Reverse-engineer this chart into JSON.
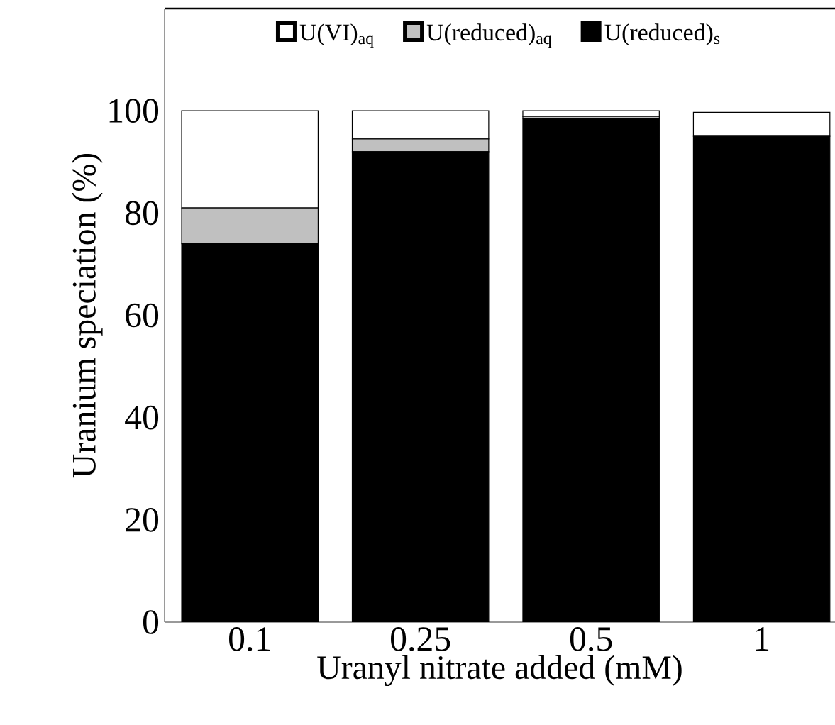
{
  "chart_data": {
    "type": "bar",
    "stacked": true,
    "xlabel": "Uranyl nitrate added (mM)",
    "ylabel": "Uranium speciation (%)",
    "categories": [
      "0.1",
      "0.25",
      "0.5",
      "1"
    ],
    "series": [
      {
        "name": "U(reduced)$_{s}$",
        "color": "#000000",
        "values": [
          74,
          92,
          98.5,
          95
        ]
      },
      {
        "name": "U(reduced)$_{aq}$",
        "color": "#c0c0c0",
        "values": [
          7,
          2.5,
          0.4,
          0
        ]
      },
      {
        "name": "U(VI)$_{aq}$",
        "color": "#ffffff",
        "values": [
          19,
          5.5,
          1.1,
          4.7
        ]
      }
    ],
    "ylim": [
      0,
      120
    ],
    "yticks": [
      0,
      20,
      40,
      60,
      80,
      100
    ],
    "legend": "top"
  }
}
